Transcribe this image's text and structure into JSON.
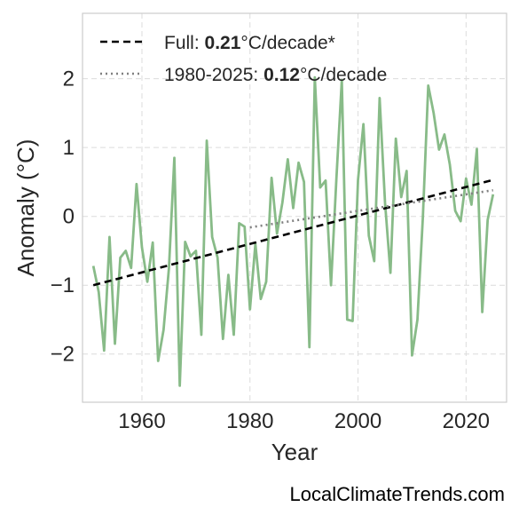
{
  "chart_data": {
    "type": "line",
    "xlabel": "Year",
    "ylabel": "Anomaly (°C)",
    "xlim": [
      1949,
      2027.5
    ],
    "ylim": [
      -2.7,
      2.95
    ],
    "xticks": [
      1960,
      1980,
      2000,
      2020
    ],
    "xtick_labels": [
      "1960",
      "1980",
      "2000",
      "2020"
    ],
    "yticks": [
      -2,
      -1,
      0,
      1,
      2
    ],
    "ytick_labels": [
      "−2",
      "−1",
      "0",
      "1",
      "2"
    ],
    "grid": true,
    "legend_position": "top-left",
    "series": [
      {
        "kind": "anomaly",
        "color": "#88bb88",
        "x": [
          1951,
          1952,
          1953,
          1954,
          1955,
          1956,
          1957,
          1958,
          1959,
          1960,
          1961,
          1962,
          1963,
          1964,
          1965,
          1966,
          1967,
          1968,
          1969,
          1970,
          1971,
          1972,
          1973,
          1974,
          1975,
          1976,
          1977,
          1978,
          1979,
          1980,
          1981,
          1982,
          1983,
          1984,
          1985,
          1986,
          1987,
          1988,
          1989,
          1990,
          1991,
          1992,
          1993,
          1994,
          1995,
          1996,
          1997,
          1998,
          1999,
          2000,
          2001,
          2002,
          2003,
          2004,
          2005,
          2006,
          2007,
          2008,
          2009,
          2010,
          2011,
          2012,
          2013,
          2014,
          2015,
          2016,
          2017,
          2018,
          2019,
          2020,
          2021,
          2022,
          2023,
          2024,
          2025
        ],
        "y": [
          -0.72,
          -1.1,
          -1.95,
          -0.3,
          -1.85,
          -0.6,
          -0.5,
          -0.75,
          0.47,
          -0.45,
          -0.95,
          -0.38,
          -2.1,
          -1.65,
          -0.75,
          0.85,
          -2.46,
          -0.37,
          -0.58,
          -0.5,
          -1.72,
          1.1,
          -0.3,
          -0.6,
          -1.78,
          -0.85,
          -1.72,
          -0.1,
          -0.15,
          -1.35,
          -0.4,
          -1.2,
          -0.95,
          0.56,
          -0.25,
          0.2,
          0.83,
          0.12,
          0.78,
          0.5,
          -1.9,
          2.02,
          0.42,
          0.52,
          -1.0,
          0.55,
          1.98,
          -1.5,
          -1.52,
          0.53,
          1.34,
          -0.28,
          -0.65,
          1.72,
          0.2,
          -0.82,
          1.13,
          0.28,
          0.66,
          -2.02,
          -1.5,
          -0.02,
          1.9,
          1.5,
          0.97,
          1.19,
          0.75,
          0.08,
          -0.07,
          0.55,
          0.17,
          0.98,
          -1.39,
          -0.05,
          0.32
        ]
      },
      {
        "kind": "trend-full",
        "color": "#000000",
        "x": [
          1951,
          2025
        ],
        "y": [
          -1.0,
          0.53
        ]
      },
      {
        "kind": "trend-1980",
        "color": "#808080",
        "x": [
          1980,
          2025
        ],
        "y": [
          -0.16,
          0.38
        ]
      }
    ],
    "legend": [
      {
        "prefix": "Full: ",
        "value": "0.21",
        "suffix": "°C/decade*"
      },
      {
        "prefix": "1980-2025: ",
        "value": "0.12",
        "suffix": "°C/decade"
      }
    ]
  },
  "watermark": "LocalClimateTrends.com"
}
